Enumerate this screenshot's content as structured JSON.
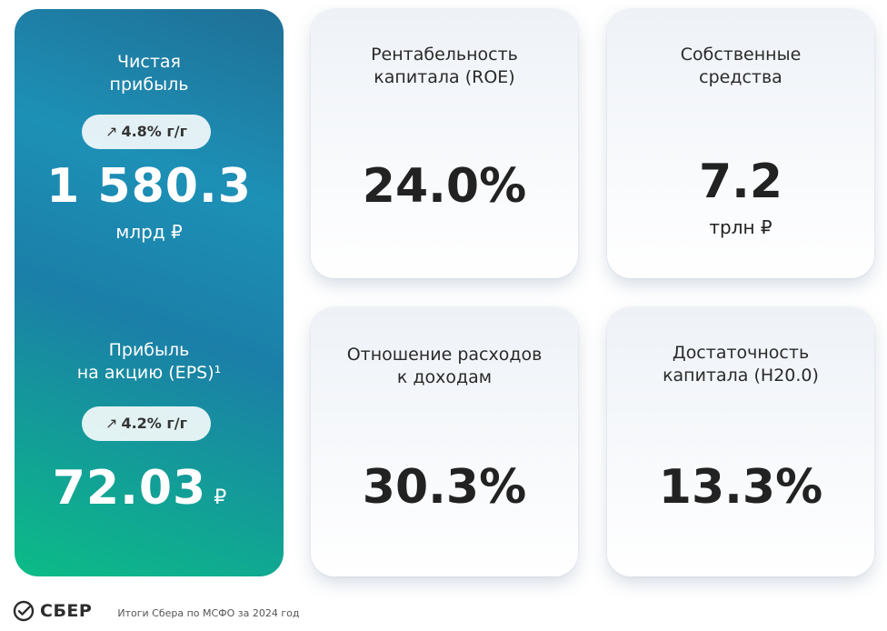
{
  "net_profit": {
    "title_line1": "Чистая",
    "title_line2": "прибыль",
    "arrow": "↗",
    "change": "4.8% г/г",
    "value": "1 580.3",
    "unit": "млрд ₽"
  },
  "eps": {
    "title_line1": "Прибыль",
    "title_line2": "на акцию (EPS)¹",
    "arrow": "↗",
    "change": "4.2% г/г",
    "value": "72.03",
    "unit": "₽"
  },
  "roe": {
    "title_line1": "Рентабельность",
    "title_line2": "капитала (ROE)",
    "value": "24.0%"
  },
  "equity": {
    "title_line1": "Собственные",
    "title_line2": "средства",
    "value": "7.2",
    "unit": "трлн ₽"
  },
  "cir": {
    "title_line1": "Отношение расходов",
    "title_line2": "к доходам",
    "value": "30.3%"
  },
  "capital": {
    "title_line1": "Достаточность",
    "title_line2": "капитала (Н20.0)",
    "value": "13.3%"
  },
  "footer": {
    "brand": "СБЕР",
    "text": "Итоги Сбера по МСФО за 2024 год"
  },
  "colors": {
    "hero_top": "#1f6f96",
    "hero_bottom": "#0cbc86",
    "brand_green": "#21a038"
  }
}
